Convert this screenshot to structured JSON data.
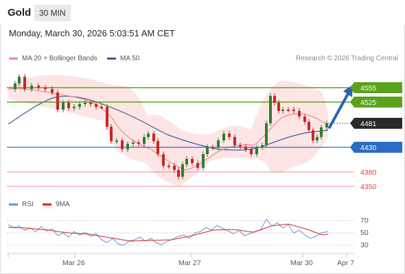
{
  "header": {
    "title": "Gold",
    "interval": "30 MIN",
    "datetime": "Monday, March 30, 2026 5:03:51 AM CET"
  },
  "legend": {
    "ma20_label": "MA 20 + Bollinger Bands",
    "ma50_label": "MA 50",
    "copyright": "Research © 2026 Trading Central"
  },
  "colors": {
    "ma20": "#f07f7f",
    "ma50": "#3a5a9c",
    "resistance": "#5aa21d",
    "pivot": "#2b6cc4",
    "support": "#f08a8a",
    "arrow": "#2b63b0",
    "bull": "#2e7d32",
    "bear": "#c62828"
  },
  "levels": [
    {
      "value": "4555",
      "kind": "resistance"
    },
    {
      "value": "4525",
      "kind": "resistance"
    },
    {
      "value": "4481",
      "kind": "current"
    },
    {
      "value": "4430",
      "kind": "pivot"
    },
    {
      "value": "4380",
      "kind": "support"
    },
    {
      "value": "4350",
      "kind": "support"
    }
  ],
  "rsi": {
    "rsi_label": "RSI",
    "ma9_label": "9MA",
    "levels": [
      "70",
      "50",
      "30"
    ]
  },
  "xaxis": {
    "labels": [
      "Mar 26",
      "Mar 27",
      "Mar 30",
      "Apr 7"
    ]
  }
}
